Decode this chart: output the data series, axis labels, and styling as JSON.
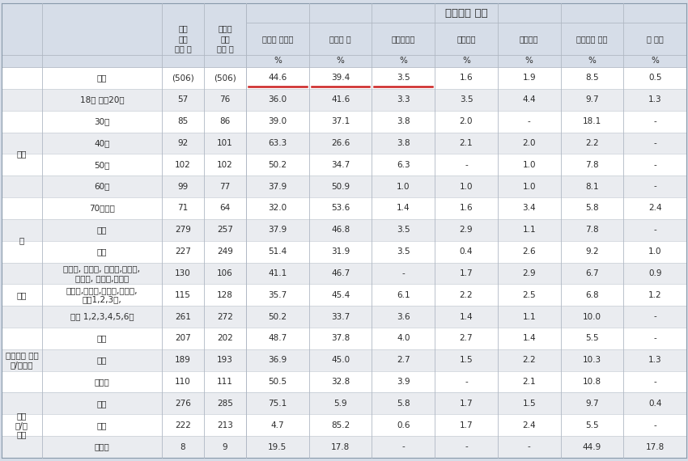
{
  "bg_color": "#d6dde8",
  "cell_bg_white": "#ffffff",
  "cell_bg_light": "#eaecf0",
  "header_bg": "#d6dde8",
  "text_color": "#2a2a2a",
  "underline_color": "#cc2222",
  "title_header": "지지하는 정당",
  "party_labels": [
    "더불어 민주당",
    "국민의 힐",
    "조국혁신당",
    "개혁신당",
    "기타정당",
    "지지정당 없음",
    "잘 모름"
  ],
  "survey_label": "조사\n완료\n사레 수",
  "weight_label": "가중값\n적용\n사레 수",
  "cat_groups": [
    {
      "label": "",
      "rows": [
        0
      ]
    },
    {
      "label": "연령",
      "rows": [
        1,
        2,
        3,
        4,
        5,
        6
      ]
    },
    {
      "label": "성",
      "rows": [
        7,
        8
      ]
    },
    {
      "label": "지역",
      "rows": [
        9,
        10,
        11
      ]
    },
    {
      "label": "파주시청 이전\n찬/반여부",
      "rows": [
        12,
        13,
        14
      ]
    },
    {
      "label": "탄핵\n찬/반\n여부",
      "rows": [
        15,
        16,
        17
      ]
    }
  ],
  "rows": [
    {
      "label": "전체",
      "bold": true,
      "values": [
        "(506)",
        "(506)",
        "44.6",
        "39.4",
        "3.5",
        "1.6",
        "1.9",
        "8.5",
        "0.5"
      ],
      "underline": [
        2,
        3,
        4
      ]
    },
    {
      "label": "18세 이섨20대",
      "bold": false,
      "values": [
        "57",
        "76",
        "36.0",
        "41.6",
        "3.3",
        "3.5",
        "4.4",
        "9.7",
        "1.3"
      ]
    },
    {
      "label": "30대",
      "bold": false,
      "values": [
        "85",
        "86",
        "39.0",
        "37.1",
        "3.8",
        "2.0",
        "-",
        "18.1",
        "-"
      ]
    },
    {
      "label": "40대",
      "bold": false,
      "values": [
        "92",
        "101",
        "63.3",
        "26.6",
        "3.8",
        "2.1",
        "2.0",
        "2.2",
        "-"
      ]
    },
    {
      "label": "50대",
      "bold": false,
      "values": [
        "102",
        "102",
        "50.2",
        "34.7",
        "6.3",
        "-",
        "1.0",
        "7.8",
        "-"
      ]
    },
    {
      "label": "60대",
      "bold": false,
      "values": [
        "99",
        "77",
        "37.9",
        "50.9",
        "1.0",
        "1.0",
        "1.0",
        "8.1",
        "-"
      ]
    },
    {
      "label": "70세이상",
      "bold": false,
      "values": [
        "71",
        "64",
        "32.0",
        "53.6",
        "1.4",
        "1.6",
        "3.4",
        "5.8",
        "2.4"
      ]
    },
    {
      "label": "남성",
      "bold": true,
      "values": [
        "279",
        "257",
        "37.9",
        "46.8",
        "3.5",
        "2.9",
        "1.1",
        "7.8",
        "-"
      ]
    },
    {
      "label": "여성",
      "bold": true,
      "values": [
        "227",
        "249",
        "51.4",
        "31.9",
        "3.5",
        "0.4",
        "2.6",
        "9.2",
        "1.0"
      ]
    },
    {
      "label": "문산음, 법원음, 조리음,적성면,\n파평면, 장단면,교하동",
      "bold": false,
      "values": [
        "130",
        "106",
        "41.1",
        "46.7",
        "-",
        "1.7",
        "2.9",
        "6.7",
        "0.9"
      ]
    },
    {
      "label": "파주음,월롭면,광탄면,탄현면,\n금쳘1,2,3동,",
      "bold": false,
      "values": [
        "115",
        "128",
        "35.7",
        "45.4",
        "6.1",
        "2.2",
        "2.5",
        "6.8",
        "1.2"
      ]
    },
    {
      "label": "운정 1,2,3,4,5,6동",
      "bold": false,
      "values": [
        "261",
        "272",
        "50.2",
        "33.7",
        "3.6",
        "1.4",
        "1.1",
        "10.0",
        "-"
      ]
    },
    {
      "label": "찬성",
      "bold": true,
      "values": [
        "207",
        "202",
        "48.7",
        "37.8",
        "4.0",
        "2.7",
        "1.4",
        "5.5",
        "-"
      ]
    },
    {
      "label": "반대",
      "bold": true,
      "values": [
        "189",
        "193",
        "36.9",
        "45.0",
        "2.7",
        "1.5",
        "2.2",
        "10.3",
        "1.3"
      ]
    },
    {
      "label": "잘모름",
      "bold": true,
      "values": [
        "110",
        "111",
        "50.5",
        "32.8",
        "3.9",
        "-",
        "2.1",
        "10.8",
        "-"
      ]
    },
    {
      "label": "찬성",
      "bold": true,
      "values": [
        "276",
        "285",
        "75.1",
        "5.9",
        "5.8",
        "1.7",
        "1.5",
        "9.7",
        "0.4"
      ]
    },
    {
      "label": "반대",
      "bold": true,
      "values": [
        "222",
        "213",
        "4.7",
        "85.2",
        "0.6",
        "1.7",
        "2.4",
        "5.5",
        "-"
      ]
    },
    {
      "label": "잘모름",
      "bold": true,
      "values": [
        "8",
        "9",
        "19.5",
        "17.8",
        "-",
        "-",
        "-",
        "44.9",
        "17.8"
      ]
    }
  ]
}
